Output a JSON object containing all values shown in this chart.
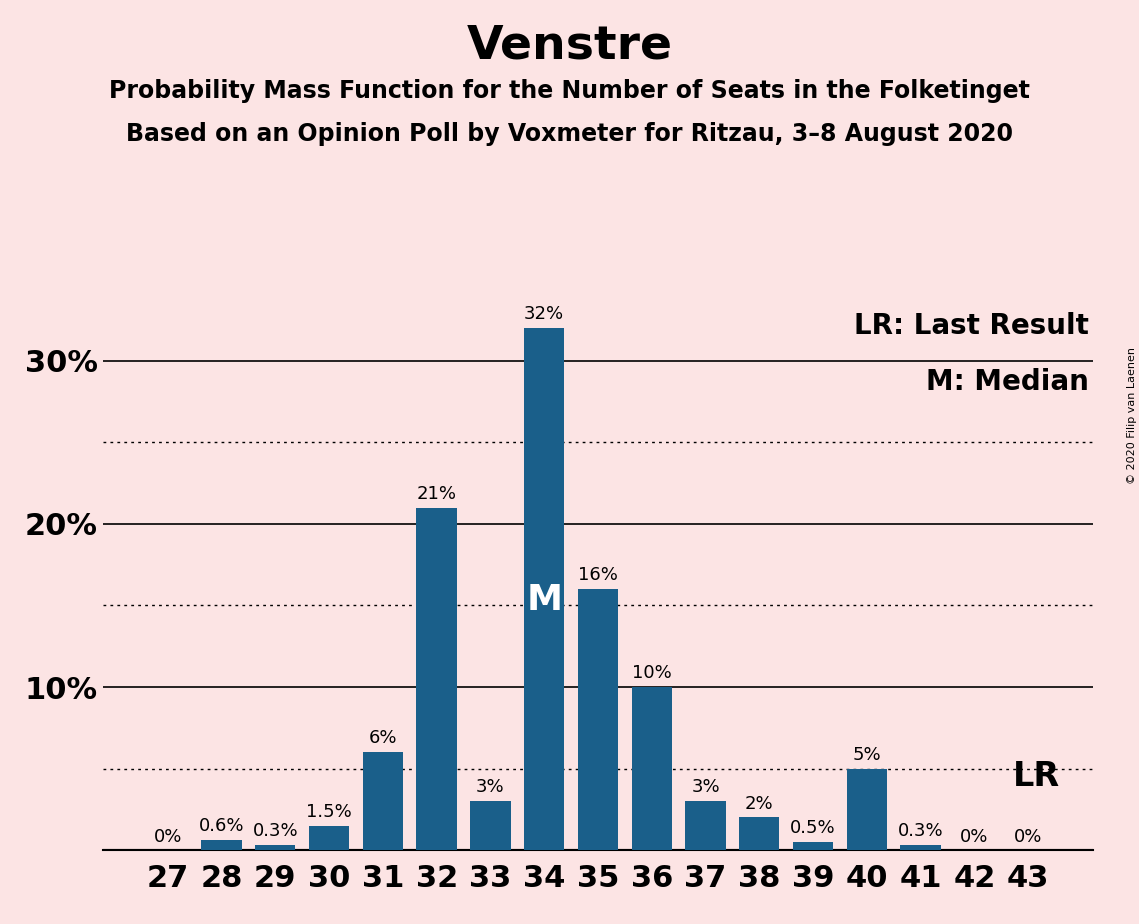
{
  "title": "Venstre",
  "subtitle1": "Probability Mass Function for the Number of Seats in the Folketinget",
  "subtitle2": "Based on an Opinion Poll by Voxmeter for Ritzau, 3–8 August 2020",
  "copyright": "© 2020 Filip van Laenen",
  "categories": [
    27,
    28,
    29,
    30,
    31,
    32,
    33,
    34,
    35,
    36,
    37,
    38,
    39,
    40,
    41,
    42,
    43
  ],
  "values": [
    0.0,
    0.6,
    0.3,
    1.5,
    6.0,
    21.0,
    3.0,
    32.0,
    16.0,
    10.0,
    3.0,
    2.0,
    0.5,
    5.0,
    0.3,
    0.0,
    0.0
  ],
  "labels": [
    "0%",
    "0.6%",
    "0.3%",
    "1.5%",
    "6%",
    "21%",
    "3%",
    "32%",
    "16%",
    "10%",
    "3%",
    "2%",
    "0.5%",
    "5%",
    "0.3%",
    "0%",
    "0%"
  ],
  "bar_color": "#1a5f8a",
  "background_color": "#fce4e4",
  "median_seat": 34,
  "lr_label": "LR",
  "median_label": "M",
  "legend_lr": "LR: Last Result",
  "legend_m": "M: Median",
  "ylim_max": 34,
  "solid_yticks": [
    0,
    10,
    20,
    30
  ],
  "dotted_yticks": [
    5,
    15,
    25
  ],
  "ytick_labels_solid": [
    "",
    "10%",
    "20%",
    "30%"
  ],
  "title_fontsize": 34,
  "subtitle_fontsize": 17,
  "label_fontsize": 13,
  "tick_fontsize": 22,
  "legend_fontsize": 20,
  "median_fontsize": 26,
  "lr_fontsize": 24,
  "copyright_fontsize": 8
}
